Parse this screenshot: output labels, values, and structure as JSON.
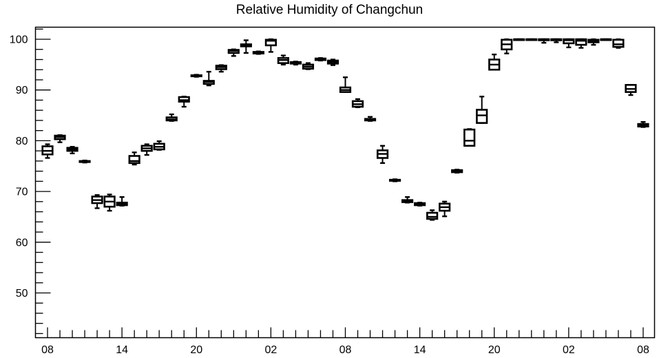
{
  "chart_data": {
    "type": "boxplot",
    "title": "Relative Humidity of Changchun",
    "xlabel": "",
    "ylabel": "",
    "ylim": [
      41,
      103
    ],
    "xlim": [
      0,
      48
    ],
    "grid": false,
    "legend": "none",
    "x_ticks": [
      {
        "x": 0,
        "label": "08"
      },
      {
        "x": 6,
        "label": "14"
      },
      {
        "x": 12,
        "label": "20"
      },
      {
        "x": 18,
        "label": "02"
      },
      {
        "x": 24,
        "label": "08"
      },
      {
        "x": 30,
        "label": "14"
      },
      {
        "x": 36,
        "label": "20"
      },
      {
        "x": 42,
        "label": "02"
      },
      {
        "x": 48,
        "label": "08"
      }
    ],
    "y_ticks": [
      50,
      60,
      70,
      80,
      90,
      100
    ],
    "boxes": [
      {
        "x": 0,
        "min": 76.6,
        "q1": 77.3,
        "median": 78.0,
        "q3": 78.9,
        "max": 79.3
      },
      {
        "x": 1,
        "min": 79.7,
        "q1": 80.3,
        "median": 80.7,
        "q3": 81.0,
        "max": 81.1
      },
      {
        "x": 2,
        "min": 77.5,
        "q1": 78.0,
        "median": 78.3,
        "q3": 78.6,
        "max": 78.8
      },
      {
        "x": 3,
        "min": 75.7,
        "q1": 75.8,
        "median": 75.9,
        "q3": 76.0,
        "max": 76.1
      },
      {
        "x": 4,
        "min": 66.7,
        "q1": 67.7,
        "median": 68.3,
        "q3": 69.0,
        "max": 69.3
      },
      {
        "x": 5,
        "min": 66.2,
        "q1": 67.0,
        "median": 68.0,
        "q3": 69.0,
        "max": 69.4
      },
      {
        "x": 6,
        "min": 67.2,
        "q1": 67.3,
        "median": 67.6,
        "q3": 67.8,
        "max": 68.9
      },
      {
        "x": 7,
        "min": 75.3,
        "q1": 75.6,
        "median": 76.0,
        "q3": 77.0,
        "max": 77.7
      },
      {
        "x": 8,
        "min": 77.2,
        "q1": 78.0,
        "median": 78.5,
        "q3": 79.0,
        "max": 79.3
      },
      {
        "x": 9,
        "min": 78.2,
        "q1": 78.3,
        "median": 78.8,
        "q3": 79.4,
        "max": 79.9
      },
      {
        "x": 10,
        "min": 83.9,
        "q1": 84.0,
        "median": 84.2,
        "q3": 84.6,
        "max": 85.2
      },
      {
        "x": 11,
        "min": 86.7,
        "q1": 87.7,
        "median": 88.0,
        "q3": 88.6,
        "max": 88.7
      },
      {
        "x": 12,
        "min": 92.6,
        "q1": 92.7,
        "median": 92.8,
        "q3": 92.9,
        "max": 93.0
      },
      {
        "x": 13,
        "min": 90.9,
        "q1": 91.2,
        "median": 91.6,
        "q3": 91.8,
        "max": 93.6
      },
      {
        "x": 14,
        "min": 93.6,
        "q1": 94.1,
        "median": 94.5,
        "q3": 94.8,
        "max": 94.9
      },
      {
        "x": 15,
        "min": 96.7,
        "q1": 97.3,
        "median": 97.7,
        "q3": 97.9,
        "max": 98.0
      },
      {
        "x": 16,
        "min": 97.3,
        "q1": 98.6,
        "median": 98.9,
        "q3": 99.0,
        "max": 99.8
      },
      {
        "x": 17,
        "min": 97.1,
        "q1": 97.2,
        "median": 97.4,
        "q3": 97.5,
        "max": 97.6
      },
      {
        "x": 18,
        "min": 97.5,
        "q1": 98.8,
        "median": 99.7,
        "q3": 99.9,
        "max": 100.0
      },
      {
        "x": 19,
        "min": 95.0,
        "q1": 95.3,
        "median": 95.9,
        "q3": 96.3,
        "max": 96.8
      },
      {
        "x": 20,
        "min": 95.0,
        "q1": 95.2,
        "median": 95.3,
        "q3": 95.5,
        "max": 95.6
      },
      {
        "x": 21,
        "min": 94.1,
        "q1": 94.2,
        "median": 94.6,
        "q3": 95.0,
        "max": 95.3
      },
      {
        "x": 22,
        "min": 95.8,
        "q1": 95.9,
        "median": 96.0,
        "q3": 96.2,
        "max": 96.3
      },
      {
        "x": 23,
        "min": 94.9,
        "q1": 95.2,
        "median": 95.5,
        "q3": 95.8,
        "max": 96.0
      },
      {
        "x": 24,
        "min": 89.6,
        "q1": 89.6,
        "median": 90.0,
        "q3": 90.5,
        "max": 92.5
      },
      {
        "x": 25,
        "min": 86.6,
        "q1": 86.7,
        "median": 87.2,
        "q3": 87.8,
        "max": 88.2
      },
      {
        "x": 26,
        "min": 83.9,
        "q1": 84.0,
        "median": 84.1,
        "q3": 84.3,
        "max": 84.7
      },
      {
        "x": 27,
        "min": 75.6,
        "q1": 76.6,
        "median": 77.4,
        "q3": 78.1,
        "max": 79.0
      },
      {
        "x": 28,
        "min": 72.0,
        "q1": 72.1,
        "median": 72.2,
        "q3": 72.3,
        "max": 72.4
      },
      {
        "x": 29,
        "min": 67.8,
        "q1": 67.9,
        "median": 68.1,
        "q3": 68.3,
        "max": 68.9
      },
      {
        "x": 30,
        "min": 67.2,
        "q1": 67.3,
        "median": 67.5,
        "q3": 67.7,
        "max": 67.8
      },
      {
        "x": 31,
        "min": 64.4,
        "q1": 64.6,
        "median": 65.0,
        "q3": 65.8,
        "max": 66.3
      },
      {
        "x": 32,
        "min": 65.1,
        "q1": 66.2,
        "median": 66.9,
        "q3": 67.6,
        "max": 68.0
      },
      {
        "x": 33,
        "min": 73.7,
        "q1": 73.8,
        "median": 74.0,
        "q3": 74.2,
        "max": 74.3
      },
      {
        "x": 34,
        "min": 79.0,
        "q1": 79.0,
        "median": 80.0,
        "q3": 82.2,
        "max": 82.3
      },
      {
        "x": 35,
        "min": 83.5,
        "q1": 83.5,
        "median": 85.0,
        "q3": 86.1,
        "max": 88.7
      },
      {
        "x": 36,
        "min": 94.0,
        "q1": 94.0,
        "median": 95.0,
        "q3": 96.0,
        "max": 97.0
      },
      {
        "x": 37,
        "min": 97.2,
        "q1": 98.0,
        "median": 99.0,
        "q3": 99.9,
        "max": 100.0
      },
      {
        "x": 38,
        "min": 99.9,
        "q1": 100.0,
        "median": 100.0,
        "q3": 100.0,
        "max": 100.0
      },
      {
        "x": 39,
        "min": 99.9,
        "q1": 100.0,
        "median": 100.0,
        "q3": 100.0,
        "max": 100.0
      },
      {
        "x": 40,
        "min": 99.3,
        "q1": 99.8,
        "median": 100.0,
        "q3": 100.0,
        "max": 100.0
      },
      {
        "x": 41,
        "min": 99.4,
        "q1": 99.8,
        "median": 100.0,
        "q3": 100.0,
        "max": 100.0
      },
      {
        "x": 42,
        "min": 98.4,
        "q1": 99.2,
        "median": 99.8,
        "q3": 100.0,
        "max": 100.0
      },
      {
        "x": 43,
        "min": 98.3,
        "q1": 98.9,
        "median": 99.7,
        "q3": 100.0,
        "max": 100.0
      },
      {
        "x": 44,
        "min": 98.9,
        "q1": 99.4,
        "median": 99.7,
        "q3": 99.9,
        "max": 100.0
      },
      {
        "x": 45,
        "min": 99.9,
        "q1": 100.0,
        "median": 100.0,
        "q3": 100.0,
        "max": 100.0
      },
      {
        "x": 46,
        "min": 98.3,
        "q1": 98.5,
        "median": 99.0,
        "q3": 99.9,
        "max": 100.0
      },
      {
        "x": 47,
        "min": 89.0,
        "q1": 89.6,
        "median": 90.2,
        "q3": 91.0,
        "max": 91.0
      },
      {
        "x": 48,
        "min": 82.7,
        "q1": 82.8,
        "median": 83.0,
        "q3": 83.3,
        "max": 83.7
      }
    ]
  }
}
